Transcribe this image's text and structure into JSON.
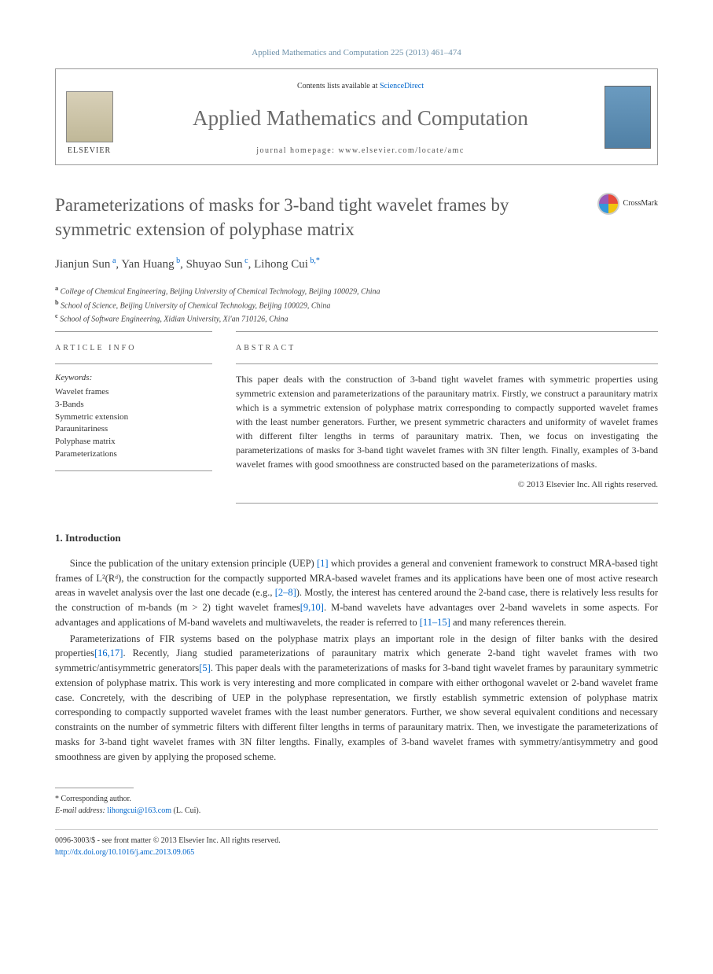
{
  "journal_ref": "Applied Mathematics and Computation 225 (2013) 461–474",
  "header": {
    "elsevier": "ELSEVIER",
    "contents_prefix": "Contents lists available at ",
    "contents_link": "ScienceDirect",
    "journal_title": "Applied Mathematics and Computation",
    "homepage_label": "journal homepage: www.elsevier.com/locate/amc"
  },
  "crossmark": "CrossMark",
  "title": "Parameterizations of masks for 3-band tight wavelet frames by symmetric extension of polyphase matrix",
  "authors_html": "Jianjun Sun|a|, Yan Huang|b|, Shuyao Sun|c|, Lihong Cui|b,*|",
  "authors": [
    {
      "name": "Jianjun Sun",
      "sup": "a"
    },
    {
      "name": "Yan Huang",
      "sup": "b"
    },
    {
      "name": "Shuyao Sun",
      "sup": "c"
    },
    {
      "name": "Lihong Cui",
      "sup": "b,*"
    }
  ],
  "affiliations": [
    {
      "sup": "a",
      "text": "College of Chemical Engineering, Beijing University of Chemical Technology, Beijing 100029, China"
    },
    {
      "sup": "b",
      "text": "School of Science, Beijing University of Chemical Technology, Beijing 100029, China"
    },
    {
      "sup": "c",
      "text": "School of Software Engineering, Xidian University, Xi'an 710126, China"
    }
  ],
  "article_info_header": "ARTICLE INFO",
  "abstract_header": "ABSTRACT",
  "keywords_label": "Keywords:",
  "keywords": [
    "Wavelet frames",
    "3-Bands",
    "Symmetric extension",
    "Paraunitariness",
    "Polyphase matrix",
    "Parameterizations"
  ],
  "abstract": "This paper deals with the construction of 3-band tight wavelet frames with symmetric properties using symmetric extension and parameterizations of the paraunitary matrix. Firstly, we construct a paraunitary matrix which is a symmetric extension of polyphase matrix corresponding to compactly supported wavelet frames with the least number generators. Further, we present symmetric characters and uniformity of wavelet frames with different filter lengths in terms of paraunitary matrix. Then, we focus on investigating the parameterizations of masks for 3-band tight wavelet frames with 3N filter length. Finally, examples of 3-band wavelet frames with good smoothness are constructed based on the parameterizations of masks.",
  "copyright": "© 2013 Elsevier Inc. All rights reserved.",
  "intro_heading": "1. Introduction",
  "intro_p1": "Since the publication of the unitary extension principle (UEP) [1] which provides a general and convenient framework to construct MRA-based tight frames of L²(Rᵈ), the construction for the compactly supported MRA-based wavelet frames and its applications have been one of most active research areas in wavelet analysis over the last one decade (e.g., [2–8]). Mostly, the interest has centered around the 2-band case, there is relatively less results for the construction of m-bands (m > 2) tight wavelet frames[9,10]. M-band wavelets have advantages over 2-band wavelets in some aspects. For advantages and applications of M-band wavelets and multiwavelets, the reader is referred to [11–15] and many references therein.",
  "intro_p2": "Parameterizations of FIR systems based on the polyphase matrix plays an important role in the design of filter banks with the desired properties[16,17]. Recently, Jiang studied parameterizations of paraunitary matrix which generate 2-band tight wavelet frames with two symmetric/antisymmetric generators[5]. This paper deals with the parameterizations of masks for 3-band tight wavelet frames by paraunitary symmetric extension of polyphase matrix. This work is very interesting and more complicated in compare with either orthogonal wavelet or 2-band wavelet frame case. Concretely, with the describing of UEP in the polyphase representation, we firstly establish symmetric extension of polyphase matrix corresponding to compactly supported wavelet frames with the least number generators. Further, we show several equivalent conditions and necessary constraints on the number of symmetric filters with different filter lengths in terms of paraunitary matrix. Then, we investigate the parameterizations of masks for 3-band tight wavelet frames with 3N filter lengths. Finally, examples of 3-band wavelet frames with symmetry/antisymmetry and good smoothness are given by applying the proposed scheme.",
  "corresponding_label": "* Corresponding author.",
  "email_label": "E-mail address:",
  "email": "lihongcui@163.com",
  "email_name": "(L. Cui).",
  "issn_line": "0096-3003/$ - see front matter © 2013 Elsevier Inc. All rights reserved.",
  "doi": "http://dx.doi.org/10.1016/j.amc.2013.09.065",
  "colors": {
    "link": "#0066cc",
    "muted_title": "#5a5a5a",
    "journal_ref": "#6b8fa8",
    "text": "#333333"
  }
}
